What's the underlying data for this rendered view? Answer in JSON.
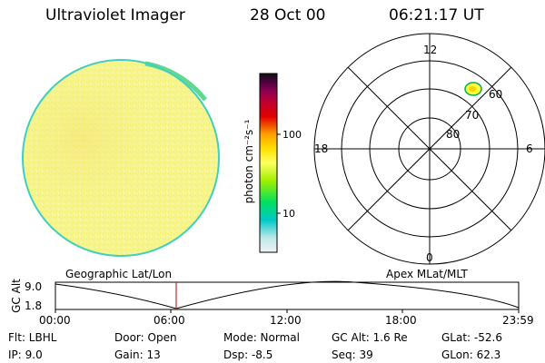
{
  "header": {
    "instrument": "Ultraviolet Imager",
    "date": "28 Oct 00",
    "time": "06:21:17 UT"
  },
  "colorbar": {
    "unit_label": "photon cm⁻²s⁻¹",
    "tick_100": "100",
    "tick_10": "10",
    "stops": [
      "#f2f2f2",
      "#bfe8e8",
      "#00c8c8",
      "#00e060",
      "#a0f000",
      "#ffff60",
      "#ffe000",
      "#ffa000",
      "#e00000",
      "#c00030",
      "#900050",
      "#500040",
      "#101010"
    ]
  },
  "polar_plot": {
    "mlt_top": "12",
    "mlt_left": "18",
    "mlt_right": "6",
    "mlt_bottom": "0",
    "lat_60": "60",
    "lat_70": "70",
    "lat_80": "80"
  },
  "timeline": {
    "left_label": "Geographic Lat/Lon",
    "right_label": "Apex MLat/MLT",
    "y_axis_label": "GC Alt",
    "y_max": "9.0",
    "y_min": "1.8",
    "x_ticks": [
      "00:00",
      "06:00",
      "12:00",
      "18:00",
      "23:59"
    ]
  },
  "info": {
    "flt": "Flt:  LBHL",
    "ip": "IP:  9.0",
    "door": "Door:  Open",
    "gain": "Gain:  13",
    "mode": "Mode:  Normal",
    "dsp": "Dsp:     -8.5",
    "gc_alt": "GC Alt:  1.6 Re",
    "seq": "Seq:  39",
    "glat": "GLat:  -52.6",
    "glon": "GLon:   62.3"
  },
  "colors": {
    "earth_fill": "#f6f58a",
    "earth_rim": "#40d0c0",
    "marker_line": "#c03020"
  }
}
